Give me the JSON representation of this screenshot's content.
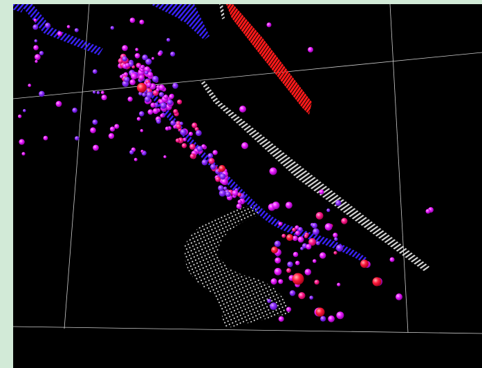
{
  "app": {
    "background_color": "#d2ead7",
    "viewport_background": "#000000"
  },
  "scene": {
    "grid_color": "#cfcfcf",
    "colors": {
      "track_blue": "#2a1cff",
      "surface_red": "#ff1a1a",
      "mesh_white": "#d8d8d8",
      "hit_violet": "#8a2bff",
      "hit_magenta": "#e81cff",
      "hit_pink": "#ff1a8c"
    }
  }
}
